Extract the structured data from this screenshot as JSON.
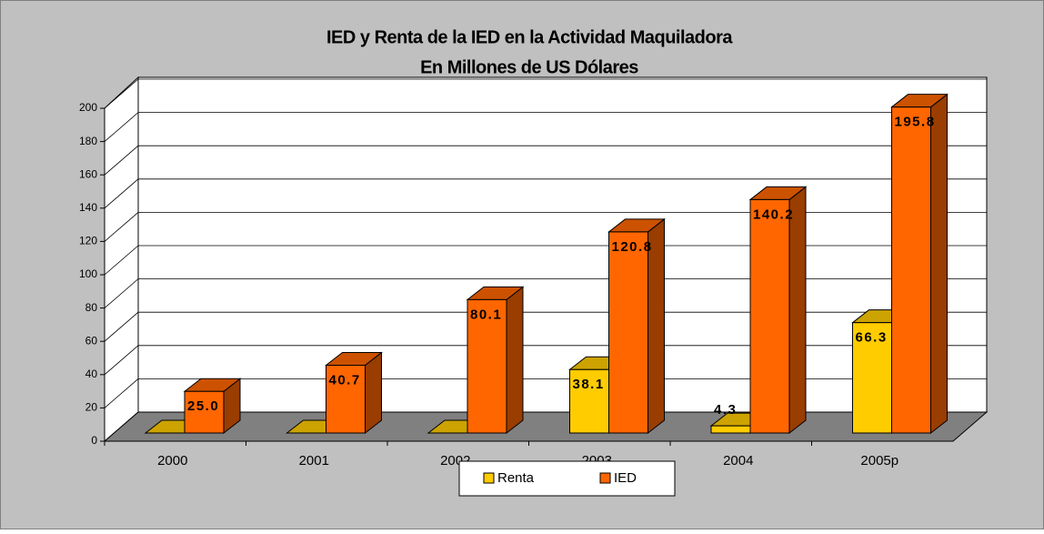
{
  "chart_data": {
    "type": "bar3d",
    "title": "IED y Renta de la IED en la Actividad Maquiladora",
    "subtitle": "En Millones de US Dólares",
    "categories": [
      "2000",
      "2001",
      "2002",
      "2003",
      "2004",
      "2005p"
    ],
    "series": [
      {
        "name": "Renta",
        "color": "#ffcc00",
        "values": [
          0,
          0,
          0,
          38.1,
          4.3,
          66.3
        ],
        "value_labels": [
          null,
          null,
          null,
          "38.1",
          "4.3",
          "66.3"
        ]
      },
      {
        "name": "IED",
        "color": "#ff6600",
        "values": [
          25.0,
          40.7,
          80.1,
          120.8,
          140.2,
          195.8
        ],
        "value_labels": [
          "25.0",
          "40.7",
          "80.1",
          "120.8",
          "140.2",
          "195.8"
        ]
      }
    ],
    "ylim": [
      0,
      200
    ],
    "yticks": [
      0,
      20,
      40,
      60,
      80,
      100,
      120,
      140,
      160,
      180,
      200
    ],
    "grid": true,
    "legend": "bottom"
  }
}
